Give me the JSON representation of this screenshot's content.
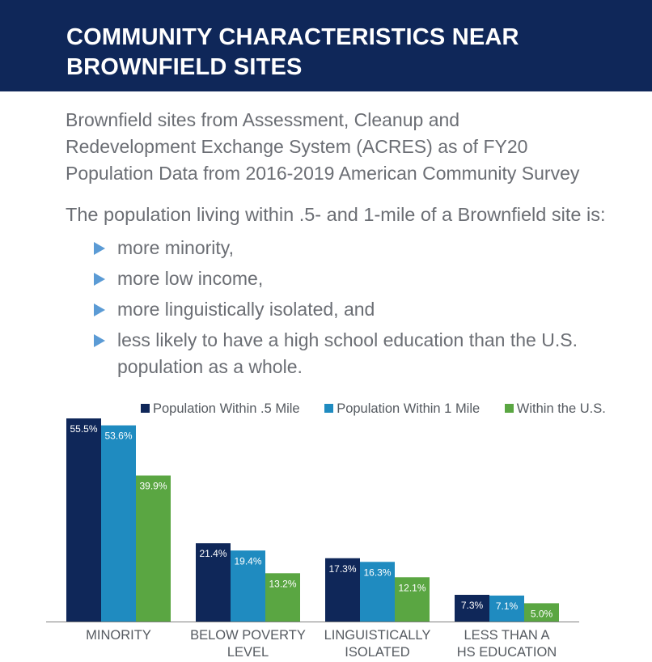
{
  "header": {
    "title_line1": "COMMUNITY CHARACTERISTICS NEAR",
    "title_line2": "BROWNFIELD SITES"
  },
  "source": {
    "line1": "Brownfield sites from Assessment, Cleanup and",
    "line2": "Redevelopment Exchange System (ACRES) as of FY20",
    "line3": "Population Data from 2016-2019 American Community Survey"
  },
  "intro": "The population living within .5- and 1-mile of a Brownfield site is:",
  "bullets": [
    "more minority,",
    "more low income,",
    "more linguistically isolated, and",
    "less likely to have a high school education than the U.S. population as a whole."
  ],
  "colors": {
    "header_bg": "#0f2759",
    "series_half_mile": "#0f2759",
    "series_one_mile": "#1f8bc0",
    "series_us": "#5aa642",
    "bullet_marker": "#5b9bd5"
  },
  "chart_data": {
    "type": "bar",
    "categories": [
      [
        "MINORITY"
      ],
      [
        "BELOW POVERTY",
        "LEVEL"
      ],
      [
        "LINGUISTICALLY",
        "ISOLATED"
      ],
      [
        "LESS THAN A",
        "HS EDUCATION"
      ]
    ],
    "series": [
      {
        "name": "Population Within .5 Mile",
        "values": [
          55.5,
          21.4,
          17.3,
          7.3
        ],
        "labels": [
          "55.5%",
          "21.4%",
          "17.3%",
          "7.3%"
        ]
      },
      {
        "name": "Population Within 1 Mile",
        "values": [
          53.6,
          19.4,
          16.3,
          7.1
        ],
        "labels": [
          "53.6%",
          "19.4%",
          "16.3%",
          "7.1%"
        ]
      },
      {
        "name": "Within the U.S.",
        "values": [
          39.9,
          13.2,
          12.1,
          5.0
        ],
        "labels": [
          "39.9%",
          "13.2%",
          "12.1%",
          "5.0%"
        ]
      }
    ],
    "ylim": [
      0,
      55.5
    ],
    "legend_position": "top",
    "grid": false
  }
}
